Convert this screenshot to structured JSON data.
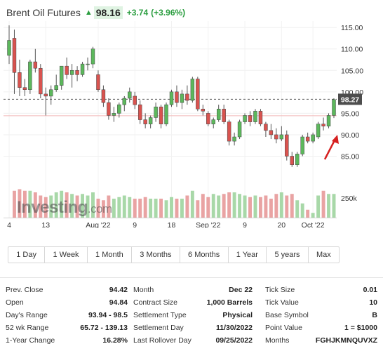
{
  "header": {
    "title": "Brent Oil Futures",
    "price": "98.16",
    "change": "+3.74",
    "change_pct": "(+3.96%)",
    "arrow_icon": "up-arrow-icon",
    "up_color": "#2a9d3f"
  },
  "watermark": {
    "brand": "Investing",
    "suffix": ".com"
  },
  "chart_data": {
    "type": "candlestick",
    "x_tick_labels": [
      "4",
      "13",
      "Aug '22",
      "9",
      "18",
      "Sep '22",
      "9",
      "20",
      "Oct '22"
    ],
    "y_tick_labels": [
      "115.00",
      "110.00",
      "105.00",
      "100.00",
      "95.00",
      "90.00",
      "85.00"
    ],
    "volume_tick_label": "250k",
    "ylim": [
      80.5,
      116.5
    ],
    "last_price_label": "98.27",
    "last_price": 98.27,
    "reference_price": 94.42,
    "up_color": "#5cb85c",
    "down_color": "#d9534f",
    "candles": [
      {
        "o": 108.5,
        "h": 115.5,
        "l": 106.5,
        "c": 112.0
      },
      {
        "o": 112.5,
        "h": 114.5,
        "l": 99.5,
        "c": 104.5
      },
      {
        "o": 104.5,
        "h": 107.5,
        "l": 99.0,
        "c": 101.0
      },
      {
        "o": 101.0,
        "h": 103.0,
        "l": 99.0,
        "c": 100.5
      },
      {
        "o": 100.5,
        "h": 107.5,
        "l": 99.5,
        "c": 107.0
      },
      {
        "o": 107.0,
        "h": 110.0,
        "l": 104.5,
        "c": 105.5
      },
      {
        "o": 105.5,
        "h": 106.5,
        "l": 98.5,
        "c": 99.5
      },
      {
        "o": 99.5,
        "h": 101.0,
        "l": 94.5,
        "c": 99.0
      },
      {
        "o": 99.0,
        "h": 101.5,
        "l": 97.0,
        "c": 100.5
      },
      {
        "o": 100.5,
        "h": 104.0,
        "l": 100.0,
        "c": 101.5
      },
      {
        "o": 101.5,
        "h": 106.0,
        "l": 100.5,
        "c": 106.0
      },
      {
        "o": 106.0,
        "h": 108.0,
        "l": 103.0,
        "c": 104.0
      },
      {
        "o": 104.0,
        "h": 106.5,
        "l": 101.0,
        "c": 105.0
      },
      {
        "o": 105.0,
        "h": 106.0,
        "l": 102.5,
        "c": 104.0
      },
      {
        "o": 104.0,
        "h": 107.0,
        "l": 103.5,
        "c": 106.5
      },
      {
        "o": 106.5,
        "h": 108.0,
        "l": 105.0,
        "c": 106.5
      },
      {
        "o": 106.5,
        "h": 110.5,
        "l": 105.5,
        "c": 110.0
      },
      {
        "o": 104.0,
        "h": 105.0,
        "l": 100.0,
        "c": 100.5
      },
      {
        "o": 100.5,
        "h": 101.5,
        "l": 96.5,
        "c": 97.5
      },
      {
        "o": 97.5,
        "h": 98.5,
        "l": 93.5,
        "c": 94.5
      },
      {
        "o": 94.5,
        "h": 96.5,
        "l": 93.0,
        "c": 95.0
      },
      {
        "o": 95.0,
        "h": 97.5,
        "l": 94.0,
        "c": 97.0
      },
      {
        "o": 97.0,
        "h": 99.0,
        "l": 95.5,
        "c": 98.5
      },
      {
        "o": 98.5,
        "h": 101.0,
        "l": 97.5,
        "c": 100.0
      },
      {
        "o": 99.0,
        "h": 100.0,
        "l": 96.0,
        "c": 97.0
      },
      {
        "o": 97.0,
        "h": 98.0,
        "l": 92.5,
        "c": 93.5
      },
      {
        "o": 93.5,
        "h": 95.0,
        "l": 91.5,
        "c": 92.5
      },
      {
        "o": 92.5,
        "h": 94.5,
        "l": 91.5,
        "c": 94.0
      },
      {
        "o": 94.0,
        "h": 97.5,
        "l": 93.0,
        "c": 96.5
      },
      {
        "o": 96.5,
        "h": 97.0,
        "l": 91.5,
        "c": 92.5
      },
      {
        "o": 92.5,
        "h": 97.5,
        "l": 92.0,
        "c": 97.0
      },
      {
        "o": 97.0,
        "h": 100.5,
        "l": 96.5,
        "c": 100.0
      },
      {
        "o": 100.0,
        "h": 101.5,
        "l": 96.5,
        "c": 97.5
      },
      {
        "o": 97.5,
        "h": 100.5,
        "l": 96.0,
        "c": 99.5
      },
      {
        "o": 99.5,
        "h": 101.5,
        "l": 97.0,
        "c": 98.0
      },
      {
        "o": 98.0,
        "h": 103.5,
        "l": 97.5,
        "c": 103.0
      },
      {
        "o": 103.0,
        "h": 103.5,
        "l": 95.5,
        "c": 96.0
      },
      {
        "o": 96.0,
        "h": 97.0,
        "l": 94.5,
        "c": 95.5
      },
      {
        "o": 95.0,
        "h": 95.5,
        "l": 92.0,
        "c": 92.5
      },
      {
        "o": 92.5,
        "h": 94.0,
        "l": 91.5,
        "c": 93.5
      },
      {
        "o": 93.5,
        "h": 97.0,
        "l": 93.0,
        "c": 96.0
      },
      {
        "o": 96.0,
        "h": 97.0,
        "l": 92.5,
        "c": 93.0
      },
      {
        "o": 93.0,
        "h": 93.5,
        "l": 87.5,
        "c": 88.5
      },
      {
        "o": 88.5,
        "h": 90.5,
        "l": 87.5,
        "c": 89.5
      },
      {
        "o": 89.5,
        "h": 93.5,
        "l": 89.0,
        "c": 93.0
      },
      {
        "o": 93.0,
        "h": 95.0,
        "l": 92.5,
        "c": 94.5
      },
      {
        "o": 94.5,
        "h": 95.5,
        "l": 92.0,
        "c": 93.0
      },
      {
        "o": 93.0,
        "h": 96.0,
        "l": 92.5,
        "c": 95.5
      },
      {
        "o": 95.5,
        "h": 96.0,
        "l": 92.0,
        "c": 92.5
      },
      {
        "o": 92.5,
        "h": 93.0,
        "l": 89.5,
        "c": 91.0
      },
      {
        "o": 91.0,
        "h": 92.5,
        "l": 89.0,
        "c": 90.0
      },
      {
        "o": 90.0,
        "h": 91.5,
        "l": 88.0,
        "c": 89.0
      },
      {
        "o": 89.0,
        "h": 92.0,
        "l": 88.5,
        "c": 90.0
      },
      {
        "o": 90.0,
        "h": 91.0,
        "l": 84.0,
        "c": 85.0
      },
      {
        "o": 85.0,
        "h": 86.0,
        "l": 82.5,
        "c": 83.0
      },
      {
        "o": 83.0,
        "h": 86.0,
        "l": 82.5,
        "c": 85.5
      },
      {
        "o": 85.5,
        "h": 90.0,
        "l": 85.0,
        "c": 89.5
      },
      {
        "o": 89.5,
        "h": 90.5,
        "l": 88.0,
        "c": 88.5
      },
      {
        "o": 88.5,
        "h": 90.5,
        "l": 88.0,
        "c": 90.0
      },
      {
        "o": 89.5,
        "h": 93.0,
        "l": 89.0,
        "c": 92.5
      },
      {
        "o": 92.5,
        "h": 94.0,
        "l": 91.0,
        "c": 92.0
      },
      {
        "o": 92.0,
        "h": 95.0,
        "l": 91.5,
        "c": 94.5
      },
      {
        "o": 94.5,
        "h": 98.5,
        "l": 93.9,
        "c": 98.2
      }
    ],
    "volume_rel": [
      0.0,
      0.85,
      0.9,
      0.85,
      0.85,
      0.8,
      0.7,
      0.65,
      0.7,
      0.8,
      0.85,
      0.8,
      0.75,
      0.7,
      0.75,
      0.7,
      0.8,
      0.6,
      0.55,
      0.7,
      0.6,
      0.65,
      0.7,
      0.65,
      0.6,
      0.6,
      0.65,
      0.6,
      0.6,
      0.6,
      0.55,
      0.65,
      0.6,
      0.6,
      0.7,
      0.85,
      0.55,
      0.75,
      0.65,
      0.75,
      0.7,
      0.75,
      0.8,
      0.8,
      0.75,
      0.7,
      0.65,
      0.7,
      0.65,
      0.7,
      0.6,
      0.75,
      0.8,
      0.7,
      0.75,
      0.55,
      0.45,
      0.25,
      0.15,
      0.7,
      0.85,
      0.75,
      0.75
    ]
  },
  "ranges": [
    "1 Day",
    "1 Week",
    "1 Month",
    "3 Months",
    "6 Months",
    "1 Year",
    "5 years",
    "Max"
  ],
  "stats": {
    "col1": [
      {
        "label": "Prev. Close",
        "value": "94.42"
      },
      {
        "label": "Open",
        "value": "94.84"
      },
      {
        "label": "Day's Range",
        "value": "93.94 - 98.5"
      },
      {
        "label": "52 wk Range",
        "value": "65.72 - 139.13"
      },
      {
        "label": "1-Year Change",
        "value": "16.28%"
      }
    ],
    "col2": [
      {
        "label": "Month",
        "value": "Dec 22"
      },
      {
        "label": "Contract Size",
        "value": "1,000 Barrels"
      },
      {
        "label": "Settlement Type",
        "value": "Physical"
      },
      {
        "label": "Settlement Day",
        "value": "11/30/2022"
      },
      {
        "label": "Last Rollover Day",
        "value": "09/25/2022"
      }
    ],
    "col3": [
      {
        "label": "Tick Size",
        "value": "0.01"
      },
      {
        "label": "Tick Value",
        "value": "10"
      },
      {
        "label": "Base Symbol",
        "value": "B"
      },
      {
        "label": "Point Value",
        "value": "1 = $1000"
      },
      {
        "label": "Months",
        "value": "FGHJKMNQUVXZ"
      }
    ]
  }
}
